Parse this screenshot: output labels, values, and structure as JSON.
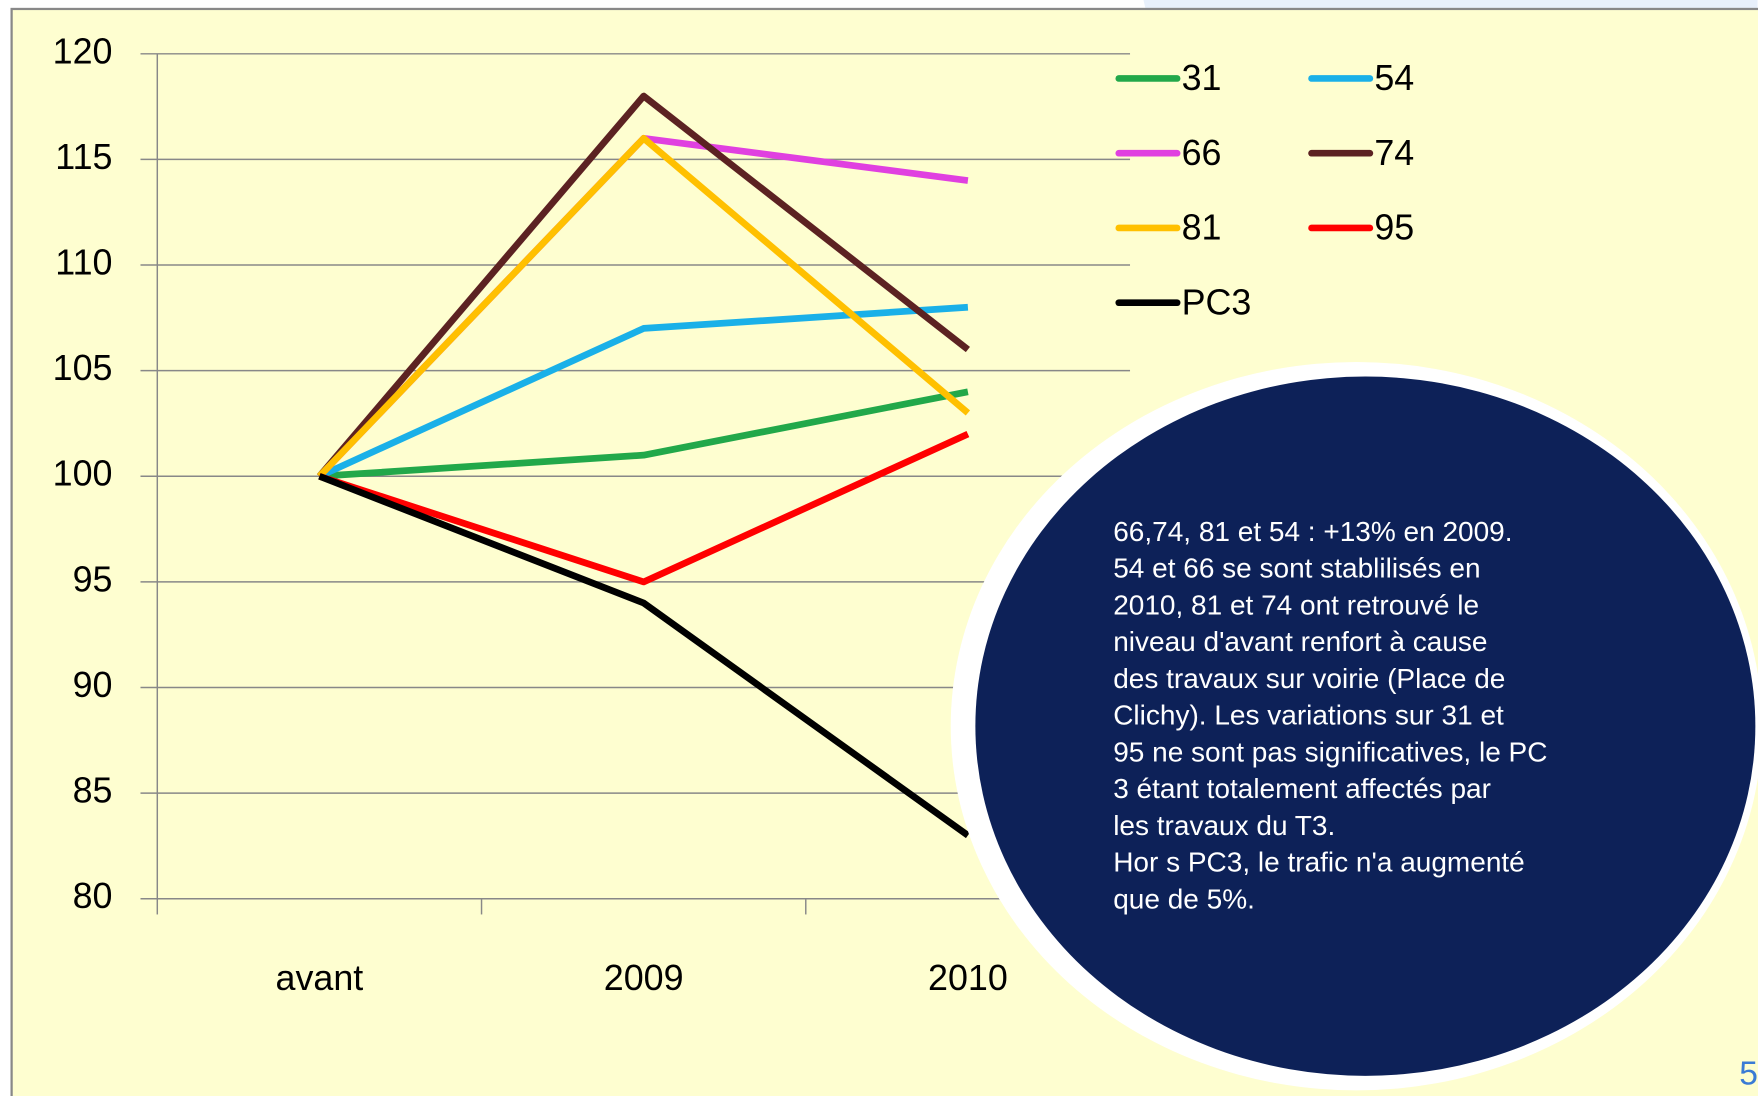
{
  "chart_data": {
    "type": "line",
    "categories": [
      "avant",
      "2009",
      "2010"
    ],
    "series": [
      {
        "name": "31",
        "color": "#22a84a",
        "values": [
          100,
          101,
          104
        ]
      },
      {
        "name": "54",
        "color": "#1ab0e8",
        "values": [
          100,
          107,
          108
        ]
      },
      {
        "name": "66",
        "color": "#e040e0",
        "values": [
          100,
          116,
          114
        ]
      },
      {
        "name": "74",
        "color": "#5c2222",
        "values": [
          100,
          118,
          106
        ]
      },
      {
        "name": "81",
        "color": "#ffc000",
        "values": [
          100,
          116,
          103
        ]
      },
      {
        "name": "95",
        "color": "#ff0000",
        "values": [
          100,
          95,
          102
        ]
      },
      {
        "name": "PC3",
        "color": "#000000",
        "values": [
          100,
          94,
          83
        ]
      }
    ],
    "ylim": [
      80,
      120
    ],
    "yticks": [
      80,
      85,
      90,
      95,
      100,
      105,
      110,
      115,
      120
    ],
    "grid": true,
    "legend": "top-right",
    "annotation": [
      "66,74, 81 et 54 : +13% en 2009.",
      "54 et 66 se sont stablilisés  en",
      "2010, 81 et 74  ont retrouvé le",
      "niveau d'avant renfort à cause",
      "des travaux sur voirie (Place de",
      "Clichy). Les variations sur  31 et",
      "95 ne sont pas significatives,  le PC",
      "3 étant totalement  affectés par",
      "les travaux du T3.",
      "Hor s PC3, le trafic n'a augmenté",
      "que de 5%."
    ],
    "page_number": "5"
  }
}
